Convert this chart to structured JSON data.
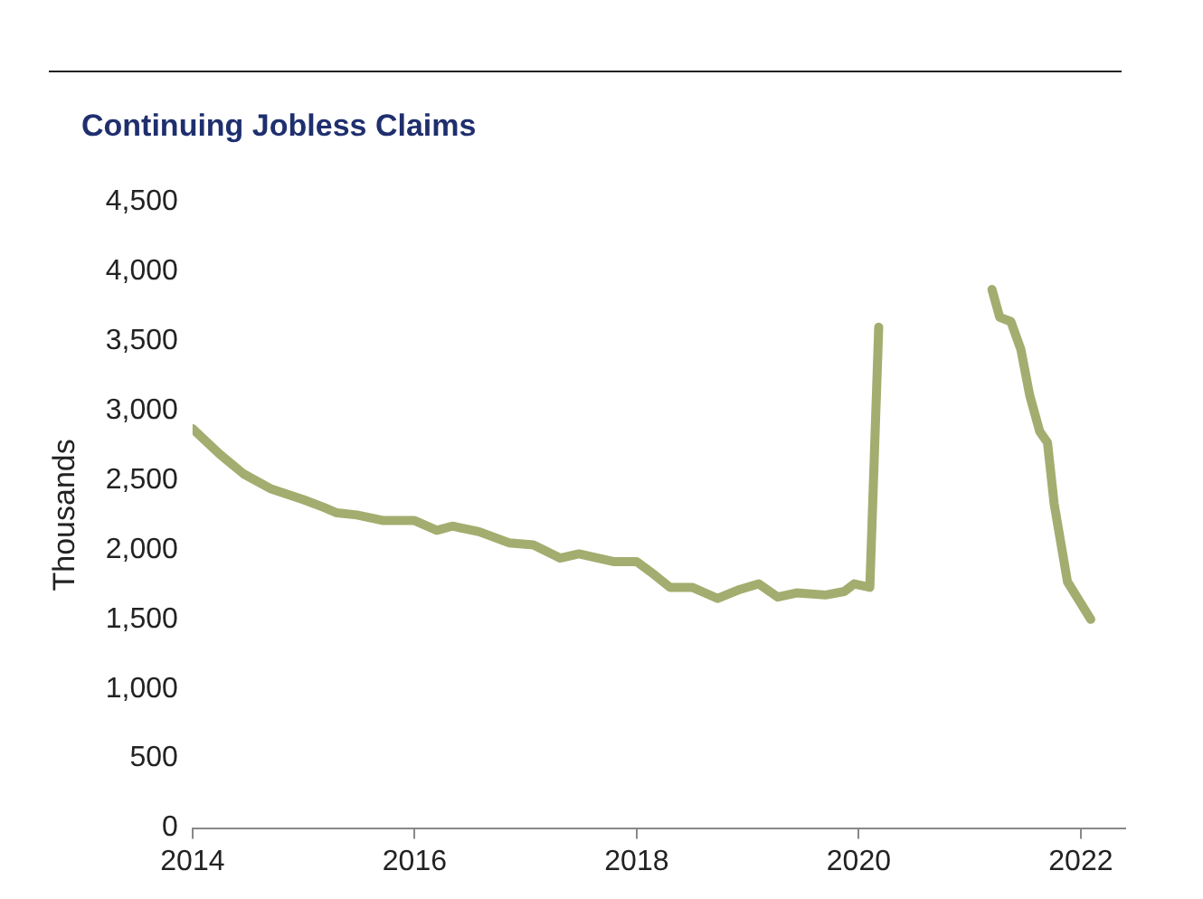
{
  "chart_data": {
    "type": "line",
    "title": "Continuing Jobless Claims",
    "ylabel": "Thousands",
    "x": [
      2014.0,
      2014.24,
      2014.46,
      2014.7,
      2015.0,
      2015.18,
      2015.3,
      2015.48,
      2015.72,
      2016.0,
      2016.2,
      2016.34,
      2016.58,
      2016.85,
      2017.07,
      2017.31,
      2017.48,
      2017.79,
      2018.0,
      2018.16,
      2018.3,
      2018.5,
      2018.73,
      2018.93,
      2019.1,
      2019.27,
      2019.44,
      2019.7,
      2019.87,
      2019.96,
      2020.1,
      2020.18,
      2020.7,
      2021.2,
      2021.27,
      2021.37,
      2021.46,
      2021.54,
      2021.63,
      2021.7,
      2021.76,
      2021.88,
      2022.09
    ],
    "series": [
      {
        "color": "#a3ad6f",
        "values": [
          2870,
          2690,
          2545,
          2440,
          2360,
          2305,
          2265,
          2250,
          2210,
          2210,
          2140,
          2170,
          2130,
          2050,
          2035,
          1940,
          1970,
          1915,
          1915,
          1820,
          1730,
          1730,
          1650,
          1715,
          1755,
          1660,
          1690,
          1675,
          1700,
          1755,
          1730,
          3600,
          null,
          3870,
          3670,
          3640,
          3440,
          3110,
          2850,
          2770,
          2330,
          1770,
          1500
        ]
      }
    ],
    "xlim": [
      2014,
      2022.4
    ],
    "xticks": [
      2014,
      2016,
      2018,
      2020,
      2022
    ],
    "ylim": [
      0,
      4500
    ],
    "yticks": [
      0,
      {
        "value": 500,
        "label": "500"
      },
      {
        "value": 1000,
        "label": "1,000"
      },
      {
        "value": 1500,
        "label": "1,500"
      },
      {
        "value": 2000,
        "label": "2,000"
      },
      {
        "value": 2500,
        "label": "2,500"
      },
      {
        "value": 3000,
        "label": "3,000"
      },
      {
        "value": 3500,
        "label": "3,500"
      },
      {
        "value": 4000,
        "label": "4,000"
      },
      {
        "value": 4500,
        "label": "4,500"
      }
    ],
    "legend": false,
    "marker": "none",
    "line_style": "solid"
  }
}
